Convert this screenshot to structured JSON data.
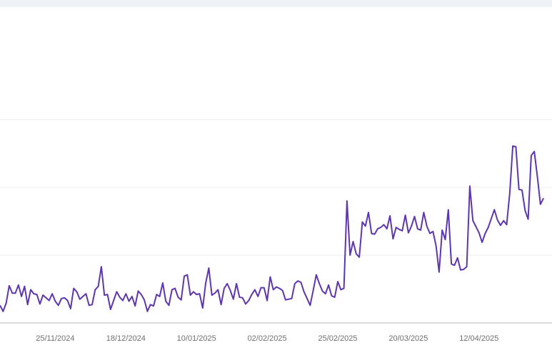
{
  "chart_data": {
    "type": "line",
    "title": "",
    "xlabel": "",
    "ylabel": "",
    "line_color": "#5e35b1",
    "grid": true,
    "ylim": [
      0,
      4.66
    ],
    "y_gridlines": [
      1,
      2,
      3
    ],
    "y_tick_labels_visible": false,
    "x_ticks": [
      "25/11/2024",
      "18/12/2024",
      "10/01/2025",
      "02/02/2025",
      "25/02/2025",
      "20/03/2025",
      "12/04/2025"
    ],
    "x": [
      "07/11/2024",
      "08/11/2024",
      "09/11/2024",
      "10/11/2024",
      "11/11/2024",
      "12/11/2024",
      "13/11/2024",
      "14/11/2024",
      "15/11/2024",
      "16/11/2024",
      "17/11/2024",
      "18/11/2024",
      "19/11/2024",
      "20/11/2024",
      "21/11/2024",
      "22/11/2024",
      "23/11/2024",
      "24/11/2024",
      "25/11/2024",
      "26/11/2024",
      "27/11/2024",
      "28/11/2024",
      "29/11/2024",
      "30/11/2024",
      "01/12/2024",
      "02/12/2024",
      "03/12/2024",
      "04/12/2024",
      "05/12/2024",
      "06/12/2024",
      "07/12/2024",
      "08/12/2024",
      "09/12/2024",
      "10/12/2024",
      "11/12/2024",
      "12/12/2024",
      "13/12/2024",
      "14/12/2024",
      "15/12/2024",
      "16/12/2024",
      "17/12/2024",
      "18/12/2024",
      "19/12/2024",
      "20/12/2024",
      "21/12/2024",
      "22/12/2024",
      "23/12/2024",
      "24/12/2024",
      "25/12/2024",
      "26/12/2024",
      "27/12/2024",
      "28/12/2024",
      "29/12/2024",
      "30/12/2024",
      "31/12/2024",
      "01/01/2025",
      "02/01/2025",
      "03/01/2025",
      "04/01/2025",
      "05/01/2025",
      "06/01/2025",
      "07/01/2025",
      "08/01/2025",
      "09/01/2025",
      "10/01/2025",
      "11/01/2025",
      "12/01/2025",
      "13/01/2025",
      "14/01/2025",
      "15/01/2025",
      "16/01/2025",
      "17/01/2025",
      "18/01/2025",
      "19/01/2025",
      "20/01/2025",
      "21/01/2025",
      "22/01/2025",
      "23/01/2025",
      "24/01/2025",
      "25/01/2025",
      "26/01/2025",
      "27/01/2025",
      "28/01/2025",
      "29/01/2025",
      "30/01/2025",
      "31/01/2025",
      "01/02/2025",
      "02/02/2025",
      "03/02/2025",
      "04/02/2025",
      "05/02/2025",
      "06/02/2025",
      "07/02/2025",
      "08/02/2025",
      "09/02/2025",
      "10/02/2025",
      "11/02/2025",
      "12/02/2025",
      "13/02/2025",
      "14/02/2025",
      "15/02/2025",
      "16/02/2025",
      "17/02/2025",
      "18/02/2025",
      "19/02/2025",
      "20/02/2025",
      "21/02/2025",
      "22/02/2025",
      "23/02/2025",
      "24/02/2025",
      "25/02/2025",
      "26/02/2025",
      "27/02/2025",
      "28/02/2025",
      "01/03/2025",
      "02/03/2025",
      "03/03/2025",
      "04/03/2025",
      "05/03/2025",
      "06/03/2025",
      "07/03/2025",
      "08/03/2025",
      "09/03/2025",
      "10/03/2025",
      "11/03/2025",
      "12/03/2025",
      "13/03/2025",
      "14/03/2025",
      "15/03/2025",
      "16/03/2025",
      "17/03/2025",
      "18/03/2025",
      "19/03/2025",
      "20/03/2025",
      "21/03/2025",
      "22/03/2025",
      "23/03/2025",
      "24/03/2025",
      "25/03/2025",
      "26/03/2025",
      "27/03/2025",
      "28/03/2025",
      "29/03/2025",
      "30/03/2025",
      "31/03/2025",
      "01/04/2025",
      "02/04/2025",
      "03/04/2025",
      "04/04/2025",
      "05/04/2025",
      "06/04/2025",
      "07/04/2025",
      "08/04/2025",
      "09/04/2025",
      "10/04/2025",
      "11/04/2025",
      "12/04/2025",
      "13/04/2025",
      "14/04/2025",
      "15/04/2025",
      "16/04/2025",
      "17/04/2025",
      "18/04/2025",
      "19/04/2025",
      "20/04/2025",
      "21/04/2025",
      "22/04/2025",
      "23/04/2025",
      "24/04/2025",
      "25/04/2025",
      "26/04/2025",
      "27/04/2025",
      "28/04/2025",
      "29/04/2025",
      "30/04/2025",
      "01/05/2025",
      "02/05/2025",
      "03/05/2025"
    ],
    "values": [
      0.26,
      0.17,
      0.29,
      0.55,
      0.44,
      0.44,
      0.56,
      0.39,
      0.54,
      0.27,
      0.49,
      0.43,
      0.42,
      0.28,
      0.41,
      0.37,
      0.33,
      0.43,
      0.32,
      0.26,
      0.36,
      0.37,
      0.33,
      0.21,
      0.51,
      0.46,
      0.35,
      0.39,
      0.43,
      0.26,
      0.27,
      0.49,
      0.54,
      0.83,
      0.41,
      0.42,
      0.2,
      0.33,
      0.46,
      0.38,
      0.33,
      0.43,
      0.32,
      0.39,
      0.25,
      0.47,
      0.42,
      0.34,
      0.17,
      0.27,
      0.25,
      0.42,
      0.39,
      0.59,
      0.32,
      0.26,
      0.49,
      0.51,
      0.38,
      0.34,
      0.69,
      0.71,
      0.41,
      0.46,
      0.42,
      0.43,
      0.22,
      0.59,
      0.81,
      0.41,
      0.44,
      0.49,
      0.27,
      0.51,
      0.58,
      0.48,
      0.35,
      0.58,
      0.38,
      0.37,
      0.28,
      0.33,
      0.42,
      0.49,
      0.39,
      0.52,
      0.52,
      0.33,
      0.68,
      0.49,
      0.53,
      0.51,
      0.48,
      0.34,
      0.35,
      0.36,
      0.58,
      0.62,
      0.6,
      0.46,
      0.36,
      0.26,
      0.48,
      0.71,
      0.58,
      0.47,
      0.43,
      0.56,
      0.4,
      0.38,
      0.61,
      0.49,
      0.51,
      1.8,
      1.0,
      1.2,
      1.02,
      0.97,
      1.49,
      1.43,
      1.63,
      1.32,
      1.31,
      1.39,
      1.41,
      1.45,
      1.39,
      1.58,
      1.24,
      1.41,
      1.38,
      1.36,
      1.59,
      1.33,
      1.43,
      1.57,
      1.39,
      1.37,
      1.63,
      1.43,
      1.32,
      1.35,
      1.14,
      0.75,
      1.37,
      1.23,
      1.67,
      0.87,
      0.85,
      0.96,
      0.78,
      0.79,
      0.83,
      2.02,
      1.51,
      1.42,
      1.33,
      1.19,
      1.32,
      1.41,
      1.54,
      1.67,
      1.52,
      1.44,
      1.51,
      1.45,
      1.91,
      2.61,
      2.6,
      1.97,
      1.96,
      1.66,
      1.53,
      2.47,
      2.53,
      2.16,
      1.75,
      1.84
    ]
  }
}
